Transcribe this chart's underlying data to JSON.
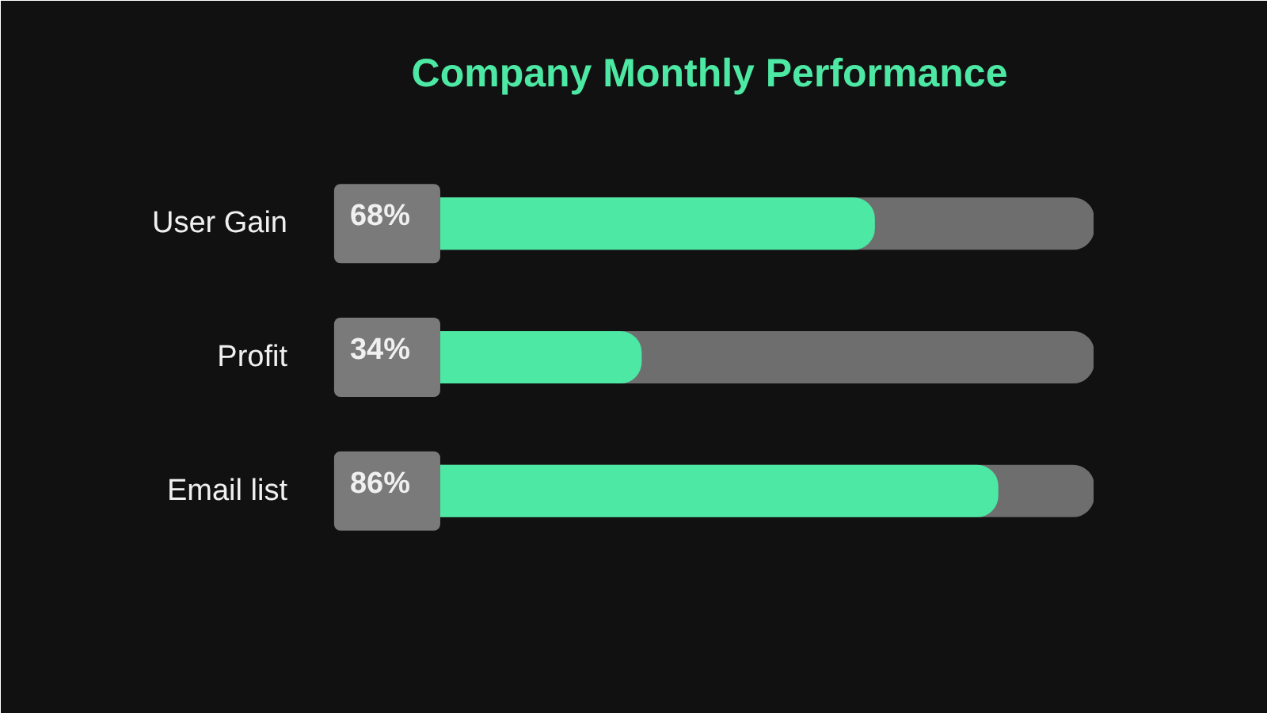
{
  "chart_data": {
    "type": "bar",
    "orientation": "horizontal",
    "title": "Company Monthly Performance",
    "categories": [
      "User Gain",
      "Profit",
      "Email list"
    ],
    "values": [
      68,
      34,
      86
    ],
    "value_labels": [
      "68%",
      "34%",
      "86%"
    ],
    "color": "#4de8a4",
    "xlim": [
      0,
      100
    ],
    "tick_labels": "y",
    "grid": false
  }
}
